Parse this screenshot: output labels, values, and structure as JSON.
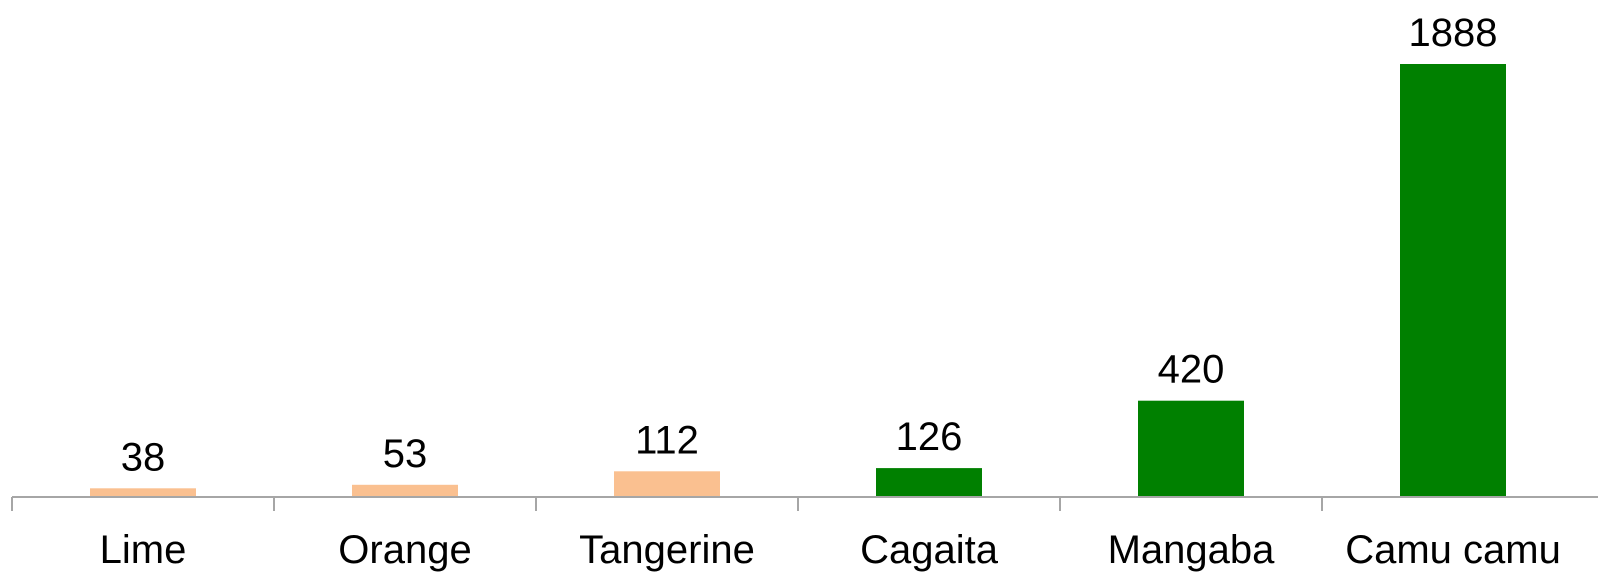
{
  "chart_data": {
    "type": "bar",
    "categories": [
      "Lime",
      "Orange",
      "Tangerine",
      "Cagaita",
      "Mangaba",
      "Camu camu"
    ],
    "values": [
      38,
      53,
      112,
      126,
      420,
      1888
    ],
    "value_labels": [
      "38",
      "53",
      "112",
      "126",
      "420",
      "1888"
    ],
    "bar_colors": [
      "#FAC090",
      "#FAC090",
      "#FAC090",
      "#008000",
      "#008000",
      "#008000"
    ],
    "axis_color": "#A6A6A6",
    "title": "",
    "xlabel": "",
    "ylabel": "",
    "ylim": [
      0,
      1888
    ],
    "grid": false,
    "legend": false
  }
}
